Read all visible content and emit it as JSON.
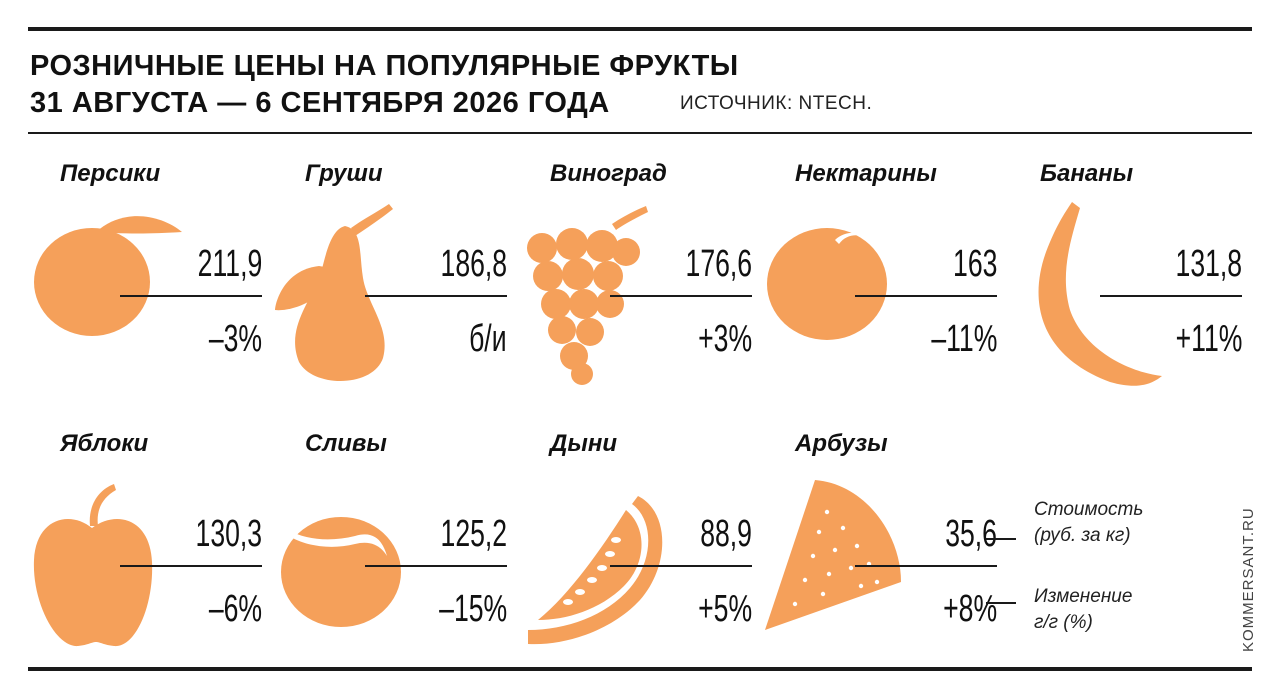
{
  "header": {
    "title_line1": "РОЗНИЧНЫЕ ЦЕНЫ НА ПОПУЛЯРНЫЕ ФРУКТЫ",
    "title_line2": "31 АВГУСТА — 6 СЕНТЯБРЯ 2026 ГОДА",
    "source": "ИСТОЧНИК: NTECH."
  },
  "legend": {
    "price_label_1": "Стоимость",
    "price_label_2": "(руб. за кг)",
    "change_label_1": "Изменение",
    "change_label_2": "г/г (%)"
  },
  "credit": "KOMMERSANT.RU",
  "colors": {
    "fruit": "#f5a05a",
    "text": "#111111"
  },
  "chart_data": {
    "type": "table",
    "columns": [
      "fruit",
      "price_rub_per_kg",
      "change_yoy"
    ],
    "rows": [
      {
        "fruit": "Персики",
        "icon": "peach-icon",
        "price": "211,9",
        "change": "–3%"
      },
      {
        "fruit": "Груши",
        "icon": "pear-icon",
        "price": "186,8",
        "change": "б/и"
      },
      {
        "fruit": "Виноград",
        "icon": "grapes-icon",
        "price": "176,6",
        "change": "+3%"
      },
      {
        "fruit": "Нектарины",
        "icon": "nectarine-icon",
        "price": "163",
        "change": "–11%"
      },
      {
        "fruit": "Бананы",
        "icon": "banana-icon",
        "price": "131,8",
        "change": "+11%"
      },
      {
        "fruit": "Яблоки",
        "icon": "apple-icon",
        "price": "130,3",
        "change": "–6%"
      },
      {
        "fruit": "Сливы",
        "icon": "plum-icon",
        "price": "125,2",
        "change": "–15%"
      },
      {
        "fruit": "Дыни",
        "icon": "melon-icon",
        "price": "88,9",
        "change": "+5%"
      },
      {
        "fruit": "Арбузы",
        "icon": "watermelon-icon",
        "price": "35,6",
        "change": "+8%"
      }
    ]
  }
}
